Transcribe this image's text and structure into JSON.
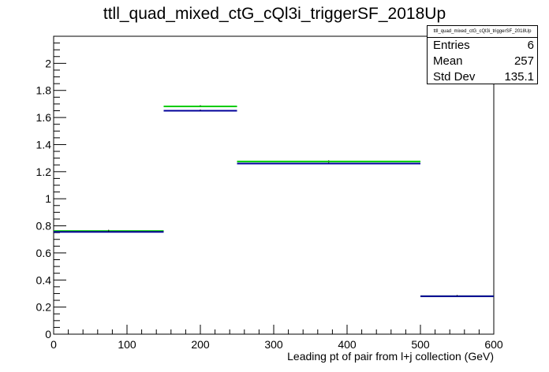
{
  "chart_data": {
    "type": "histogram",
    "title": "ttll_quad_mixed_ctG_cQl3i_triggerSF_2018Up",
    "xlabel": "Leading pt of pair from l+j collection (GeV)",
    "ylabel": "",
    "xlim": [
      0,
      600
    ],
    "ylim": [
      0,
      2.2
    ],
    "xticks": [
      0,
      100,
      200,
      300,
      400,
      500,
      600
    ],
    "yticks": [
      0,
      0.2,
      0.4,
      0.6,
      0.8,
      1,
      1.2,
      1.4,
      1.6,
      1.8,
      2
    ],
    "bins": [
      {
        "low": 0,
        "high": 150,
        "center": 75
      },
      {
        "low": 150,
        "high": 250,
        "center": 200
      },
      {
        "low": 250,
        "high": 500,
        "center": 375
      },
      {
        "low": 500,
        "high": 600,
        "center": 550
      }
    ],
    "series": [
      {
        "color": "#000099",
        "values": [
          0.755,
          1.65,
          1.26,
          0.28
        ]
      },
      {
        "color": "#00cc00",
        "values": [
          0.762,
          1.682,
          1.275,
          0.28
        ]
      }
    ],
    "grid": false,
    "stats": {
      "name": "ttll_quad_mixed_ctG_cQl3i_triggerSF_2018Up",
      "rows": [
        {
          "label": "Entries",
          "value": "6"
        },
        {
          "label": "Mean",
          "value": "257"
        },
        {
          "label": "Std Dev",
          "value": "135.1"
        }
      ]
    }
  }
}
